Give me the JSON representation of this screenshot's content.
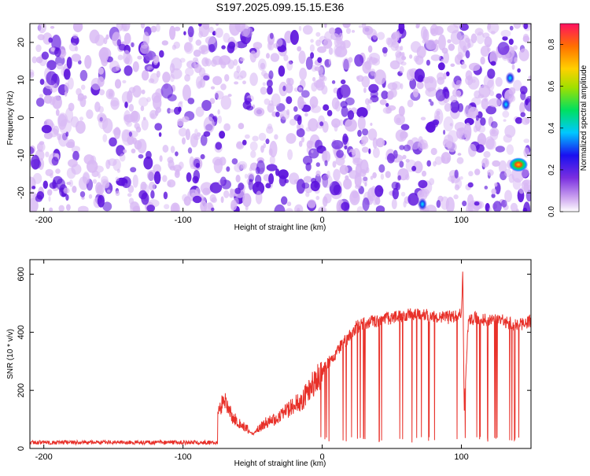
{
  "title": "S197.2025.099.15.15.E36",
  "colors": {
    "snr_line": "#e8312a",
    "noise_purple_light": "#d8b8f4",
    "noise_purple_dark": "#5a10dc",
    "colormap": [
      "#ffffff",
      "#cfa8f0",
      "#7a2ee0",
      "#1a10f0",
      "#00c8ff",
      "#00e060",
      "#a0e000",
      "#ffd000",
      "#ff7000",
      "#ff1060"
    ]
  },
  "chart_data": [
    {
      "type": "heatmap",
      "xlabel": "Height of straight line (km)",
      "ylabel": "Frequency (Hz)",
      "xlim": [
        -210,
        150
      ],
      "ylim": [
        -25,
        25
      ],
      "xticks": [
        -200,
        -100,
        0,
        100
      ],
      "yticks": [
        -20,
        -10,
        0,
        10,
        20
      ],
      "colorbar": {
        "label": "Normalized spectral amplitude",
        "range": [
          0,
          0.9
        ],
        "ticks": [
          "0.0",
          "0.2",
          "0.4",
          "0.6",
          "0.8"
        ]
      },
      "features": [
        {
          "x": 135,
          "y": 10.5,
          "amplitude": 0.35
        },
        {
          "x": 141,
          "y": -12.5,
          "amplitude": 0.8
        },
        {
          "x": 72,
          "y": -23,
          "amplitude": 0.3
        },
        {
          "x": 132,
          "y": 3.5,
          "amplitude": 0.25
        }
      ]
    },
    {
      "type": "line",
      "xlabel": "Height of straight line (km)",
      "ylabel": "SNR (10 * v/v)",
      "xlim": [
        -210,
        150
      ],
      "ylim": [
        0,
        650
      ],
      "xticks": [
        -200,
        -100,
        0,
        100
      ],
      "yticks": [
        0,
        200,
        400,
        600
      ],
      "series": [
        {
          "x": [
            -210,
            -150,
            -100,
            -80,
            -75,
            -70,
            -65,
            -60,
            -55,
            -50,
            -40,
            -30,
            -20,
            -15,
            -10,
            -5,
            0,
            5,
            10,
            15,
            20,
            25,
            30,
            40,
            50,
            60,
            70,
            80,
            90,
            100,
            101,
            102,
            105,
            110,
            120,
            130,
            140,
            150
          ],
          "y": [
            18,
            20,
            22,
            25,
            120,
            180,
            110,
            90,
            70,
            50,
            90,
            110,
            150,
            160,
            200,
            230,
            270,
            300,
            330,
            360,
            390,
            420,
            430,
            440,
            450,
            460,
            460,
            455,
            450,
            460,
            600,
            140,
            440,
            450,
            440,
            440,
            420,
            440
          ]
        }
      ]
    }
  ]
}
